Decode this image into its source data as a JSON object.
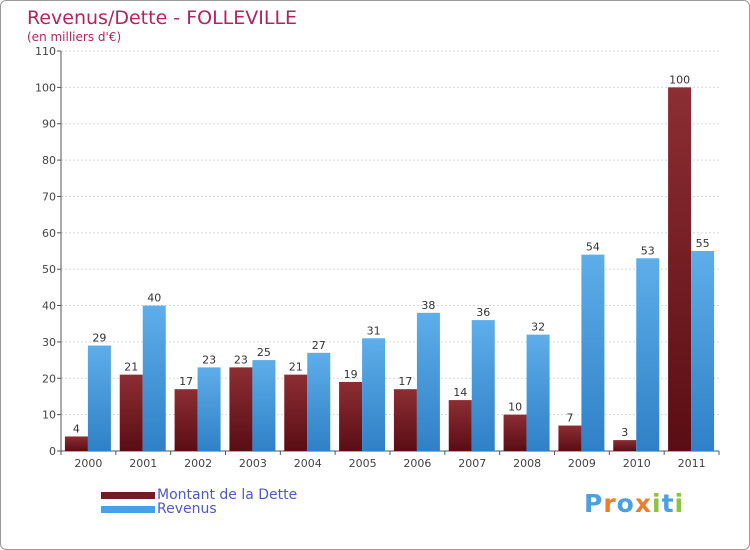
{
  "colors": {
    "dette": "#6e1f25",
    "revenus": "#4aa0e2",
    "title": "#b0245f",
    "legend_text": "#4f57c9"
  },
  "logo": {
    "text": "Proxiti",
    "letter_colors": [
      "#4aa0e2",
      "#e8812a",
      "#4aa0e2",
      "#e8812a",
      "#8cc43e",
      "#4aa0e2",
      "#8cc43e"
    ]
  },
  "chart_data": {
    "type": "bar",
    "title": "Revenus/Dette - FOLLEVILLE",
    "subtitle": "(en milliers d'€)",
    "categories": [
      "2000",
      "2001",
      "2002",
      "2003",
      "2004",
      "2005",
      "2006",
      "2007",
      "2008",
      "2009",
      "2010",
      "2011"
    ],
    "series": [
      {
        "name": "Montant de la Dette",
        "values": [
          4,
          21,
          17,
          23,
          21,
          19,
          17,
          14,
          10,
          7,
          3,
          100
        ]
      },
      {
        "name": "Revenus",
        "values": [
          29,
          40,
          23,
          25,
          27,
          31,
          38,
          36,
          32,
          54,
          53,
          55
        ]
      }
    ],
    "ylim": [
      0,
      110
    ],
    "yticks": [
      0,
      10,
      20,
      30,
      40,
      50,
      60,
      70,
      80,
      90,
      100,
      110
    ],
    "grid": true,
    "legend_position": "bottom-left"
  }
}
